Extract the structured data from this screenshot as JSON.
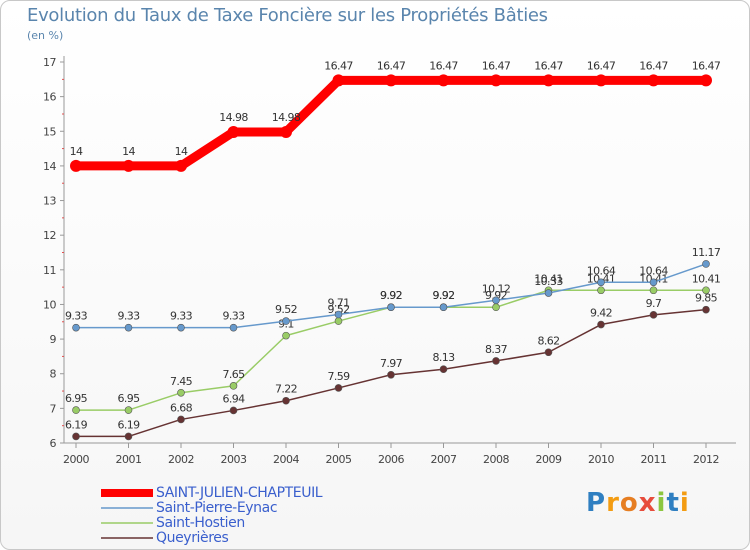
{
  "chart_data": {
    "type": "line",
    "title": "Evolution du Taux de Taxe Foncière sur les Propriétés Bâties",
    "ylabel": "(en %)",
    "xlabel": "",
    "categories": [
      "2000",
      "2001",
      "2002",
      "2003",
      "2004",
      "2005",
      "2006",
      "2007",
      "2008",
      "2009",
      "2010",
      "2011",
      "2012"
    ],
    "ylim": [
      6,
      17
    ],
    "yticks": [
      "6",
      "7",
      "8",
      "9",
      "10",
      "11",
      "12",
      "13",
      "14",
      "15",
      "16",
      "17"
    ],
    "grid": false,
    "series": [
      {
        "name": "SAINT-JULIEN-CHAPTEUIL",
        "color": "#ff0000",
        "values": [
          14,
          14,
          14,
          14.98,
          14.98,
          16.47,
          16.47,
          16.47,
          16.47,
          16.47,
          16.47,
          16.47,
          16.47
        ],
        "labels": [
          "14",
          "14",
          "14",
          "14.98",
          "14.98",
          "16.47",
          "16.47",
          "16.47",
          "16.47",
          "16.47",
          "16.47",
          "16.47",
          "16.47"
        ]
      },
      {
        "name": "Saint-Pierre-Eynac",
        "color": "#6699cc",
        "values": [
          9.33,
          9.33,
          9.33,
          9.33,
          9.52,
          9.71,
          9.92,
          9.92,
          10.12,
          10.33,
          10.64,
          10.64,
          11.17
        ],
        "labels": [
          "9.33",
          "9.33",
          "9.33",
          "9.33",
          "9.52",
          "9.71",
          "9.92",
          "9.92",
          "10.12",
          "10.33",
          "10.64",
          "10.64",
          "11.17"
        ]
      },
      {
        "name": "Saint-Hostien",
        "color": "#99cc66",
        "values": [
          6.95,
          6.95,
          7.45,
          7.65,
          9.1,
          9.52,
          9.92,
          9.92,
          9.92,
          10.41,
          10.41,
          10.41,
          10.41
        ],
        "labels": [
          "6.95",
          "6.95",
          "7.45",
          "7.65",
          "9.1",
          "9.52",
          "9.92",
          "9.92",
          "9.92",
          "10.41",
          "10.41",
          "10.41",
          "10.41"
        ]
      },
      {
        "name": "Queyrières",
        "color": "#663333",
        "values": [
          6.19,
          6.19,
          6.68,
          6.94,
          7.22,
          7.59,
          7.97,
          8.13,
          8.37,
          8.62,
          9.42,
          9.7,
          9.85
        ],
        "labels": [
          "6.19",
          "6.19",
          "6.68",
          "6.94",
          "7.22",
          "7.59",
          "7.97",
          "8.13",
          "8.37",
          "8.62",
          "9.42",
          "9.7",
          "9.85"
        ]
      }
    ]
  },
  "logo": {
    "letters": [
      "P",
      "r",
      "o",
      "x",
      "i",
      "t",
      "i"
    ]
  }
}
